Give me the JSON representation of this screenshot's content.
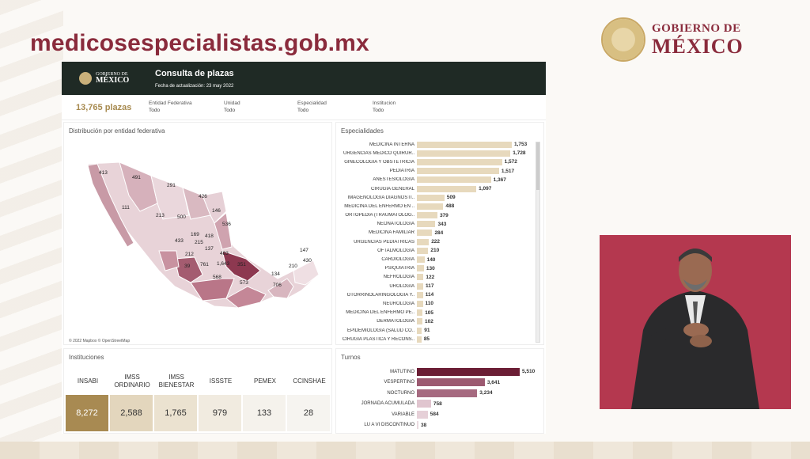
{
  "site": {
    "title": "medicosespecialistas.gob.mx"
  },
  "gov_logo": {
    "line1": "GOBIERNO DE",
    "line2": "MÉXICO"
  },
  "dashboard": {
    "logo_line1": "GOBIERNO DE",
    "logo_line2": "MÉXICO",
    "title": "Consulta de plazas",
    "update_date": "Fecha de actualización: 23 may 2022",
    "total": "13,765 plazas",
    "filters": [
      {
        "label": "Entidad Federativa",
        "value": "Todo"
      },
      {
        "label": "Unidad",
        "value": "Todo"
      },
      {
        "label": "Especialidad",
        "value": "Todo"
      },
      {
        "label": "Institucion",
        "value": "Todo"
      }
    ]
  },
  "map": {
    "title": "Distribución por entidad federativa",
    "attribution": "© 2022 Mapbox © OpenStreetMap",
    "labels": [
      "413",
      "491",
      "111",
      "291",
      "426",
      "146",
      "213",
      "500",
      "536",
      "169",
      "418",
      "433",
      "215",
      "137",
      "212",
      "483",
      "39",
      "761",
      "1,643",
      "351",
      "568",
      "573",
      "147",
      "210",
      "430",
      "134",
      "706"
    ]
  },
  "specialties": {
    "title": "Especialidades",
    "items": [
      {
        "name": "MEDICINA INTERNA",
        "value": "1,753"
      },
      {
        "name": "URGENCIAS MEDICO QUIRUR..",
        "value": "1,728"
      },
      {
        "name": "GINECOLOGIA Y OBSTETRICIA",
        "value": "1,572"
      },
      {
        "name": "PEDIATRIA",
        "value": "1,517"
      },
      {
        "name": "ANESTESIOLOGIA",
        "value": "1,367"
      },
      {
        "name": "CIRUGIA GENERAL",
        "value": "1,097"
      },
      {
        "name": "IMAGENOLOGIA DIAGNOSTI..",
        "value": "509"
      },
      {
        "name": "MEDICINA DEL ENFERMO EN ..",
        "value": "488"
      },
      {
        "name": "ORTOPEDIA (TRAUMATOLOG..",
        "value": "379"
      },
      {
        "name": "NEONATOLOGIA",
        "value": "343"
      },
      {
        "name": "MEDICINA FAMILIAR",
        "value": "284"
      },
      {
        "name": "URGENCIAS PEDIATRICAS",
        "value": "222"
      },
      {
        "name": "OFTALMOLOGIA",
        "value": "210"
      },
      {
        "name": "CARDIOLOGIA",
        "value": "140"
      },
      {
        "name": "PSIQUIATRIA",
        "value": "130"
      },
      {
        "name": "NEFROLOGIA",
        "value": "122"
      },
      {
        "name": "UROLOGIA",
        "value": "117"
      },
      {
        "name": "OTORRINOLARINGOLOGIA Y..",
        "value": "114"
      },
      {
        "name": "NEUROLOGIA",
        "value": "110"
      },
      {
        "name": "MEDICINA DEL ENFERMO PE..",
        "value": "105"
      },
      {
        "name": "DERMATOLOGIA",
        "value": "102"
      },
      {
        "name": "EPIDEMIOLOGIA (SALUD CO..",
        "value": "91"
      },
      {
        "name": "CIRUGIA PLASTICA Y RECONS..",
        "value": "85"
      }
    ]
  },
  "institutions": {
    "title": "Instituciones",
    "items": [
      {
        "name": "INSABI",
        "value": "8,272",
        "color": "#a88a52",
        "text_color": "#ffffff"
      },
      {
        "name": "IMSS ORDINARIO",
        "value": "2,588",
        "color": "#e3d6bd",
        "text_color": "#333333"
      },
      {
        "name": "IMSS BIENESTAR",
        "value": "1,765",
        "color": "#ebe2d0",
        "text_color": "#333333"
      },
      {
        "name": "ISSSTE",
        "value": "979",
        "color": "#f1ebe0",
        "text_color": "#333333"
      },
      {
        "name": "PEMEX",
        "value": "133",
        "color": "#f5f2ec",
        "text_color": "#333333"
      },
      {
        "name": "CCINSHAE",
        "value": "28",
        "color": "#f6f4f0",
        "text_color": "#333333"
      }
    ]
  },
  "shifts": {
    "title": "Turnos",
    "items": [
      {
        "name": "MATUTINO",
        "value": "5,510",
        "color": "#6b1e35"
      },
      {
        "name": "VESPERTINO",
        "value": "3,641",
        "color": "#9c5a71"
      },
      {
        "name": "NOCTURNO",
        "value": "3,234",
        "color": "#a66a80"
      },
      {
        "name": "JORNADA ACUMULADA",
        "value": "758",
        "color": "#e0c5cf"
      },
      {
        "name": "VARIABLE",
        "value": "584",
        "color": "#e6d0d8"
      },
      {
        "name": "LU A VI DISCONTINUO",
        "value": "38",
        "color": "#eadbe0"
      }
    ]
  }
}
